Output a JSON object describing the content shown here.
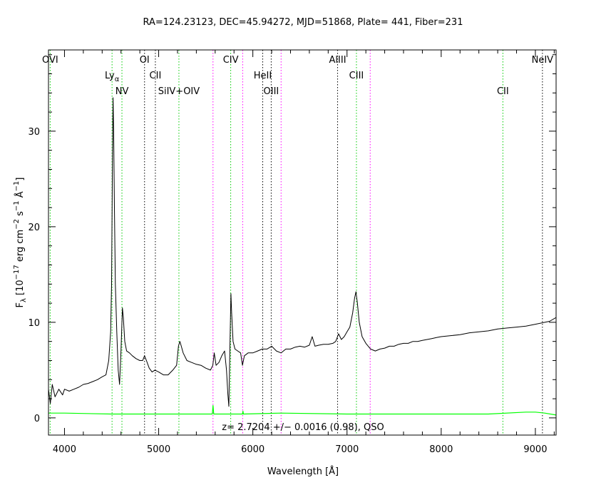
{
  "chart_data": {
    "type": "line",
    "title": "RA=124.23123, DEC=45.94272, MJD=51868, Plate=  441, Fiber=231",
    "xlabel": "Wavelength [Å]",
    "ylabel": {
      "main": "F",
      "sub": "λ",
      "bracket_open": " [10",
      "exp1": "−17",
      "unit1": " erg cm",
      "exp2": "−2",
      "unit2": " s",
      "exp3": "−1",
      "unit3": " Å",
      "exp4": "−1",
      "bracket_close": "]"
    },
    "xlim": [
      3830,
      9220
    ],
    "ylim": [
      -1.8,
      38.5
    ],
    "x_ticks": [
      {
        "value": 4000,
        "label": "4000"
      },
      {
        "value": 5000,
        "label": "5000"
      },
      {
        "value": 6000,
        "label": "6000"
      },
      {
        "value": 7000,
        "label": "7000"
      },
      {
        "value": 8000,
        "label": "8000"
      },
      {
        "value": 9000,
        "label": "9000"
      }
    ],
    "y_ticks": [
      {
        "value": 0,
        "label": "0"
      },
      {
        "value": 10,
        "label": "10"
      },
      {
        "value": 20,
        "label": "20"
      },
      {
        "value": 30,
        "label": "30"
      }
    ],
    "annotation": "z= 2.7204 +/− 0.0016 (0.98), QSO",
    "colors": {
      "spectrum": "#000000",
      "error": "#00ff00",
      "line_green": "#00cc00",
      "line_black": "#000000",
      "line_magenta": "#ff00ff"
    },
    "spectral_lines": [
      {
        "x": 3848,
        "name": "OVI",
        "color": "green",
        "row": 0
      },
      {
        "x": 4505,
        "name": "Ly",
        "sub": "α",
        "color": "green",
        "row": 1
      },
      {
        "x": 4610,
        "name": "NV",
        "color": "green",
        "row": 2
      },
      {
        "x": 4850,
        "name": "OI",
        "color": "black",
        "row": 0
      },
      {
        "x": 4965,
        "name": "CII",
        "color": "black",
        "row": 1
      },
      {
        "x": 5215,
        "name": "SiIV+OIV",
        "color": "green",
        "row": 2
      },
      {
        "x": 5765,
        "name": "CIV",
        "color": "green",
        "row": 0
      },
      {
        "x": 6105,
        "name": "HeII",
        "color": "black",
        "row": 1
      },
      {
        "x": 6195,
        "name": "OIII",
        "color": "black",
        "row": 2
      },
      {
        "x": 6900,
        "name": "AlIII",
        "color": "black",
        "row": 0
      },
      {
        "x": 7100,
        "name": "CIII",
        "color": "green",
        "row": 1
      },
      {
        "x": 8655,
        "name": "CII",
        "color": "green",
        "row": 2
      },
      {
        "x": 9075,
        "name": "NeIV",
        "color": "black",
        "row": 0
      },
      {
        "x": 5577,
        "name": "",
        "color": "magenta",
        "row": 0
      },
      {
        "x": 5892,
        "name": "",
        "color": "magenta",
        "row": 0
      },
      {
        "x": 6300,
        "name": "",
        "color": "magenta",
        "row": 0
      },
      {
        "x": 7246,
        "name": "",
        "color": "magenta",
        "row": 0
      }
    ],
    "series": [
      {
        "role": "flux",
        "points": [
          [
            3830,
            3.0
          ],
          [
            3850,
            1.5
          ],
          [
            3870,
            3.5
          ],
          [
            3900,
            2.2
          ],
          [
            3940,
            3.0
          ],
          [
            3980,
            2.4
          ],
          [
            4000,
            3.0
          ],
          [
            4050,
            2.8
          ],
          [
            4100,
            3.0
          ],
          [
            4150,
            3.2
          ],
          [
            4200,
            3.5
          ],
          [
            4250,
            3.6
          ],
          [
            4300,
            3.8
          ],
          [
            4350,
            4.0
          ],
          [
            4400,
            4.3
          ],
          [
            4440,
            4.5
          ],
          [
            4470,
            6.0
          ],
          [
            4490,
            9.0
          ],
          [
            4500,
            14.0
          ],
          [
            4510,
            28.0
          ],
          [
            4516,
            33.5
          ],
          [
            4522,
            30.0
          ],
          [
            4530,
            22.0
          ],
          [
            4540,
            14.0
          ],
          [
            4555,
            9.0
          ],
          [
            4570,
            5.0
          ],
          [
            4585,
            3.5
          ],
          [
            4600,
            7.0
          ],
          [
            4615,
            11.5
          ],
          [
            4625,
            10.5
          ],
          [
            4640,
            8.0
          ],
          [
            4660,
            7.0
          ],
          [
            4690,
            6.8
          ],
          [
            4720,
            6.5
          ],
          [
            4760,
            6.2
          ],
          [
            4800,
            6.0
          ],
          [
            4830,
            6.0
          ],
          [
            4850,
            6.5
          ],
          [
            4870,
            6.0
          ],
          [
            4900,
            5.2
          ],
          [
            4930,
            4.8
          ],
          [
            4960,
            5.0
          ],
          [
            5000,
            4.8
          ],
          [
            5050,
            4.5
          ],
          [
            5100,
            4.5
          ],
          [
            5150,
            5.0
          ],
          [
            5190,
            5.5
          ],
          [
            5210,
            7.5
          ],
          [
            5225,
            8.0
          ],
          [
            5240,
            7.5
          ],
          [
            5260,
            6.8
          ],
          [
            5300,
            6.0
          ],
          [
            5350,
            5.8
          ],
          [
            5400,
            5.6
          ],
          [
            5450,
            5.5
          ],
          [
            5500,
            5.2
          ],
          [
            5550,
            5.0
          ],
          [
            5575,
            5.5
          ],
          [
            5590,
            6.8
          ],
          [
            5610,
            5.5
          ],
          [
            5640,
            5.8
          ],
          [
            5670,
            6.5
          ],
          [
            5700,
            7.0
          ],
          [
            5720,
            5.0
          ],
          [
            5735,
            2.5
          ],
          [
            5745,
            1.2
          ],
          [
            5752,
            5.0
          ],
          [
            5760,
            9.0
          ],
          [
            5767,
            13.0
          ],
          [
            5775,
            11.0
          ],
          [
            5790,
            8.0
          ],
          [
            5810,
            7.2
          ],
          [
            5840,
            7.0
          ],
          [
            5870,
            6.8
          ],
          [
            5890,
            5.5
          ],
          [
            5910,
            6.5
          ],
          [
            5950,
            6.8
          ],
          [
            6000,
            6.8
          ],
          [
            6050,
            7.0
          ],
          [
            6100,
            7.2
          ],
          [
            6150,
            7.2
          ],
          [
            6200,
            7.5
          ],
          [
            6250,
            7.0
          ],
          [
            6300,
            6.8
          ],
          [
            6350,
            7.2
          ],
          [
            6400,
            7.2
          ],
          [
            6450,
            7.4
          ],
          [
            6500,
            7.5
          ],
          [
            6550,
            7.4
          ],
          [
            6600,
            7.6
          ],
          [
            6630,
            8.5
          ],
          [
            6660,
            7.5
          ],
          [
            6700,
            7.6
          ],
          [
            6750,
            7.7
          ],
          [
            6800,
            7.7
          ],
          [
            6850,
            7.8
          ],
          [
            6880,
            8.0
          ],
          [
            6910,
            8.8
          ],
          [
            6940,
            8.2
          ],
          [
            6970,
            8.5
          ],
          [
            7000,
            9.0
          ],
          [
            7030,
            9.5
          ],
          [
            7060,
            11.0
          ],
          [
            7080,
            12.5
          ],
          [
            7095,
            13.2
          ],
          [
            7110,
            12.0
          ],
          [
            7130,
            10.0
          ],
          [
            7160,
            8.5
          ],
          [
            7200,
            7.8
          ],
          [
            7250,
            7.2
          ],
          [
            7300,
            7.0
          ],
          [
            7350,
            7.2
          ],
          [
            7400,
            7.3
          ],
          [
            7450,
            7.5
          ],
          [
            7500,
            7.5
          ],
          [
            7550,
            7.7
          ],
          [
            7600,
            7.8
          ],
          [
            7650,
            7.8
          ],
          [
            7700,
            8.0
          ],
          [
            7750,
            8.0
          ],
          [
            7800,
            8.1
          ],
          [
            7850,
            8.2
          ],
          [
            7900,
            8.3
          ],
          [
            7950,
            8.4
          ],
          [
            8000,
            8.5
          ],
          [
            8100,
            8.6
          ],
          [
            8200,
            8.7
          ],
          [
            8300,
            8.9
          ],
          [
            8400,
            9.0
          ],
          [
            8500,
            9.1
          ],
          [
            8600,
            9.3
          ],
          [
            8700,
            9.4
          ],
          [
            8800,
            9.5
          ],
          [
            8900,
            9.6
          ],
          [
            9000,
            9.8
          ],
          [
            9100,
            10.0
          ],
          [
            9150,
            10.1
          ],
          [
            9220,
            10.5
          ]
        ]
      },
      {
        "role": "error",
        "points": [
          [
            3830,
            0.5
          ],
          [
            4000,
            0.5
          ],
          [
            4500,
            0.4
          ],
          [
            5000,
            0.4
          ],
          [
            5570,
            0.4
          ],
          [
            5577,
            1.3
          ],
          [
            5585,
            0.4
          ],
          [
            5890,
            0.4
          ],
          [
            5895,
            0.7
          ],
          [
            5900,
            0.4
          ],
          [
            6300,
            0.5
          ],
          [
            7000,
            0.4
          ],
          [
            8000,
            0.4
          ],
          [
            8500,
            0.4
          ],
          [
            8900,
            0.6
          ],
          [
            9000,
            0.6
          ],
          [
            9100,
            0.5
          ],
          [
            9220,
            0.3
          ]
        ]
      }
    ]
  }
}
